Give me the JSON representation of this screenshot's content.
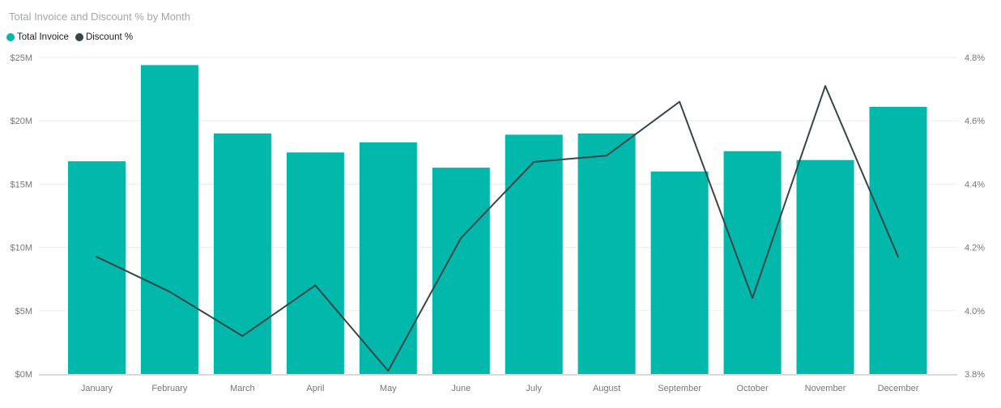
{
  "title": "Total Invoice and Discount % by Month",
  "legend": [
    {
      "label": "Total Invoice",
      "color": "#01B8AA",
      "marker": "circle"
    },
    {
      "label": "Discount %",
      "color": "#374649",
      "marker": "circle"
    }
  ],
  "colors": {
    "bar": "#01B8AA",
    "line": "#374649",
    "grid": "#EBEBEB",
    "baseline": "#D9D9D9",
    "axis_text": "#777777",
    "title_text": "#A6A6A6"
  },
  "chart_data": {
    "type": "combo-bar-line",
    "title": "Total Invoice and Discount % by Month",
    "categories": [
      "January",
      "February",
      "March",
      "April",
      "May",
      "June",
      "July",
      "August",
      "September",
      "October",
      "November",
      "December"
    ],
    "series": [
      {
        "name": "Total Invoice",
        "type": "bar",
        "axis": "left",
        "unit": "$M",
        "values": [
          16.8,
          24.4,
          19.0,
          17.5,
          18.3,
          16.3,
          18.9,
          19.0,
          16.0,
          17.6,
          16.9,
          21.1
        ]
      },
      {
        "name": "Discount %",
        "type": "line",
        "axis": "right",
        "unit": "%",
        "values": [
          4.17,
          4.06,
          3.92,
          4.08,
          3.81,
          4.23,
          4.47,
          4.49,
          4.66,
          4.04,
          4.71,
          4.17
        ]
      }
    ],
    "left_axis": {
      "ticks": [
        "$0M",
        "$5M",
        "$10M",
        "$15M",
        "$20M",
        "$25M"
      ],
      "min": 0,
      "max": 25
    },
    "right_axis": {
      "ticks": [
        "3.8%",
        "4.0%",
        "4.2%",
        "4.4%",
        "4.6%",
        "4.8%"
      ],
      "min": 3.8,
      "max": 4.8
    },
    "grid": true,
    "legend_position": "top-left"
  }
}
